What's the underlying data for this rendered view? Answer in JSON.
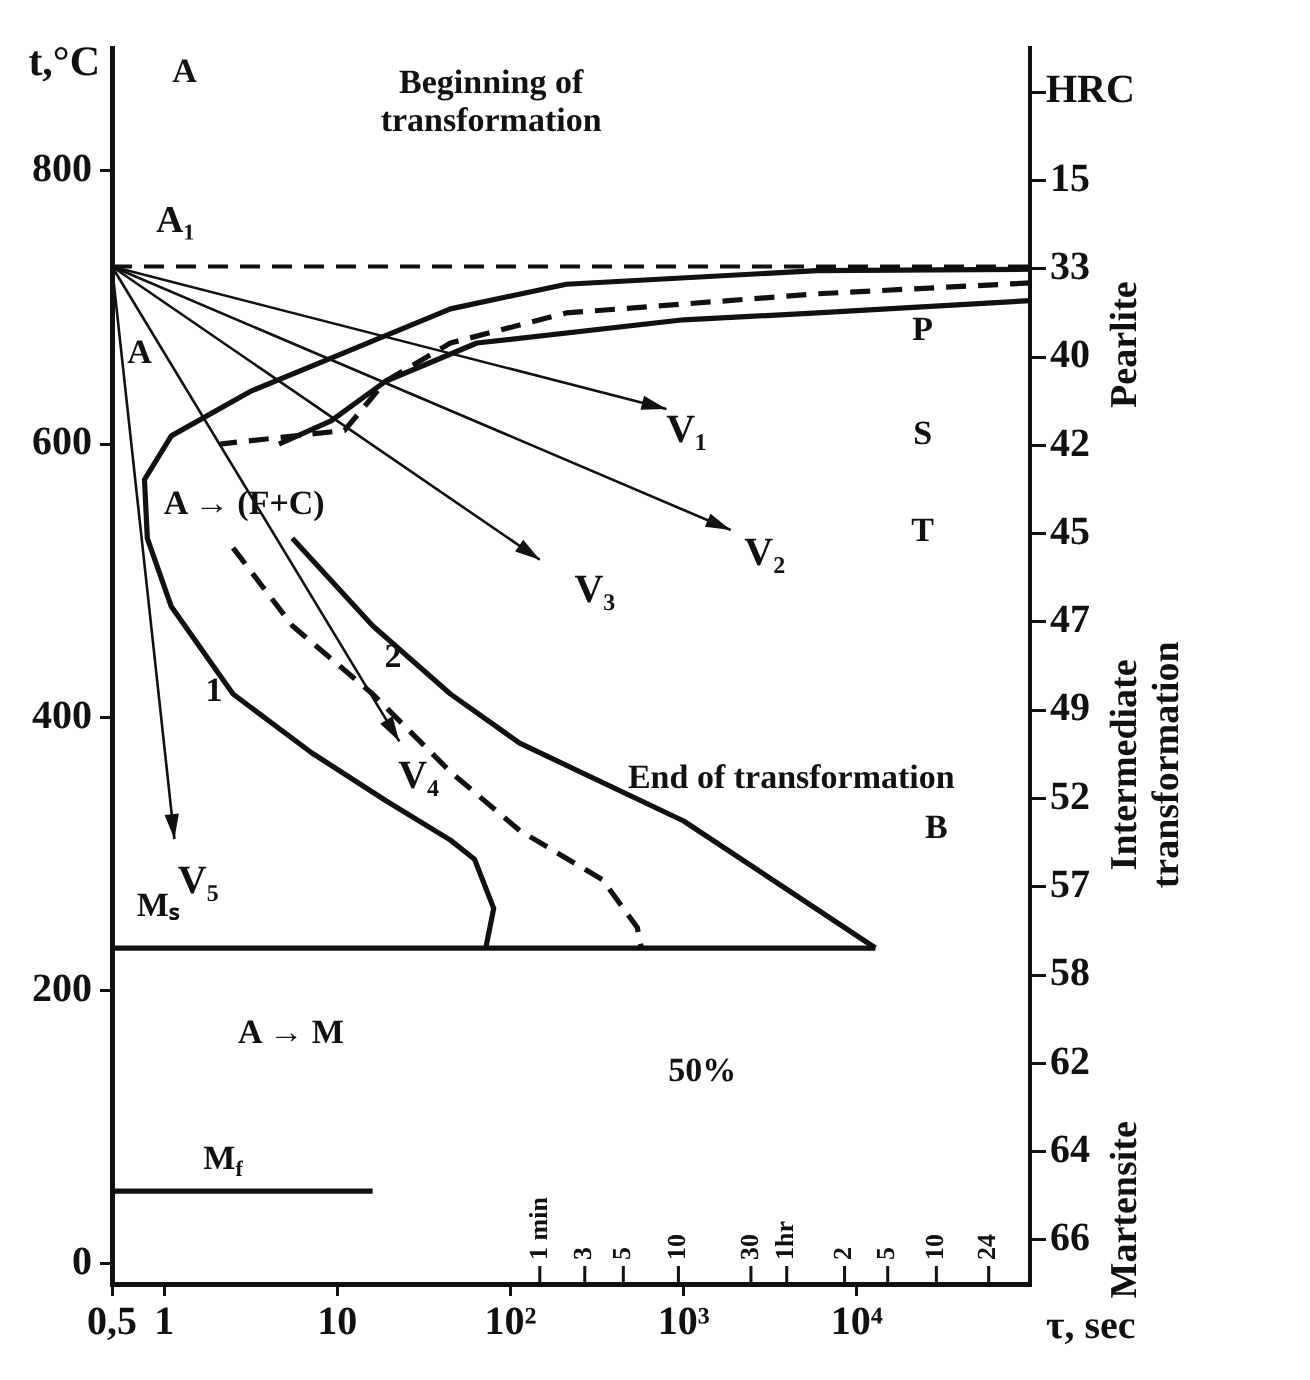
{
  "chart_data": {
    "type": "line",
    "xlabel": "τ, sec",
    "ylabel": "t,°C",
    "y2label": "HRC",
    "log": "x",
    "grid": false,
    "legend": false,
    "marker": "none",
    "xlim": [
      0.5,
      100000
    ],
    "xticks": [
      {
        "value": 0.5,
        "label": "0,5"
      },
      1,
      10,
      {
        "value": 100,
        "label": "10²"
      },
      {
        "value": 1000,
        "label": "10³"
      },
      {
        "value": 10000,
        "label": "10⁴"
      }
    ],
    "ylim": [
      -15,
      890
    ],
    "yticks": [
      0,
      200,
      400,
      600,
      800
    ],
    "y2_categories": [
      null,
      "15",
      "33",
      "40",
      "42",
      "45",
      "47",
      "49",
      "52",
      "57",
      "58",
      "62",
      "64",
      "66"
    ],
    "series": [
      {
        "color": "#111111",
        "line_style": "solid",
        "x": [
          100000,
          5900,
          210,
          45,
          11,
          3.2,
          1.1,
          0.77,
          0.8,
          1.1,
          2.5,
          7.1,
          19,
          45,
          62,
          80,
          72
        ],
        "values": [
          728,
          727,
          717,
          699,
          667,
          639,
          606,
          574,
          531,
          481,
          417,
          374,
          339,
          310,
          296,
          260,
          231
        ]
      },
      {
        "color": "#111111",
        "line_style": "dashed",
        "x": [
          100000,
          5900,
          210,
          45,
          19,
          11,
          2.1,
          null,
          2.5,
          5.5,
          16,
          45,
          113,
          340,
          540,
          570
        ],
        "values": [
          718,
          710,
          696,
          674,
          646,
          610,
          600,
          null,
          524,
          467,
          417,
          360,
          317,
          281,
          246,
          231
        ]
      },
      {
        "color": "#111111",
        "line_style": "solid",
        "x": [
          100000,
          5900,
          1000,
          64,
          19,
          9.2,
          4.6,
          null,
          5.5,
          16,
          45,
          113,
          1000,
          12800
        ],
        "values": [
          705,
          696,
          691,
          674,
          646,
          617,
          600,
          null,
          531,
          467,
          417,
          381,
          324,
          231
        ]
      },
      {
        "color": "#111111",
        "line_style": "solid",
        "x": [
          0.5,
          12800
        ],
        "values": [
          231,
          231
        ]
      },
      {
        "color": "#111111",
        "line_style": "solid",
        "x": [
          0.5,
          16
        ],
        "values": [
          53,
          53
        ]
      }
    ],
    "ref_lines": [
      {
        "axis": "y",
        "value": 730,
        "label": "A₁",
        "color": "#111111",
        "line_style": "dashed"
      }
    ],
    "annotations": [
      "A",
      "Beginning of transformation",
      "A",
      "A → (F+C)",
      "P",
      "S",
      "T",
      "B",
      "End of transformation",
      "1",
      "2",
      "Mₛ",
      "A → M",
      "M$_{f}$",
      "50%",
      "V₁",
      "V₂",
      "V₃",
      "V₄",
      "V₅",
      "Pearlite",
      "Intermediate transformation",
      "Martensite",
      "1 min",
      "3",
      "5",
      "10",
      "30",
      "1hr",
      "2",
      "5",
      "10",
      "24"
    ]
  }
}
